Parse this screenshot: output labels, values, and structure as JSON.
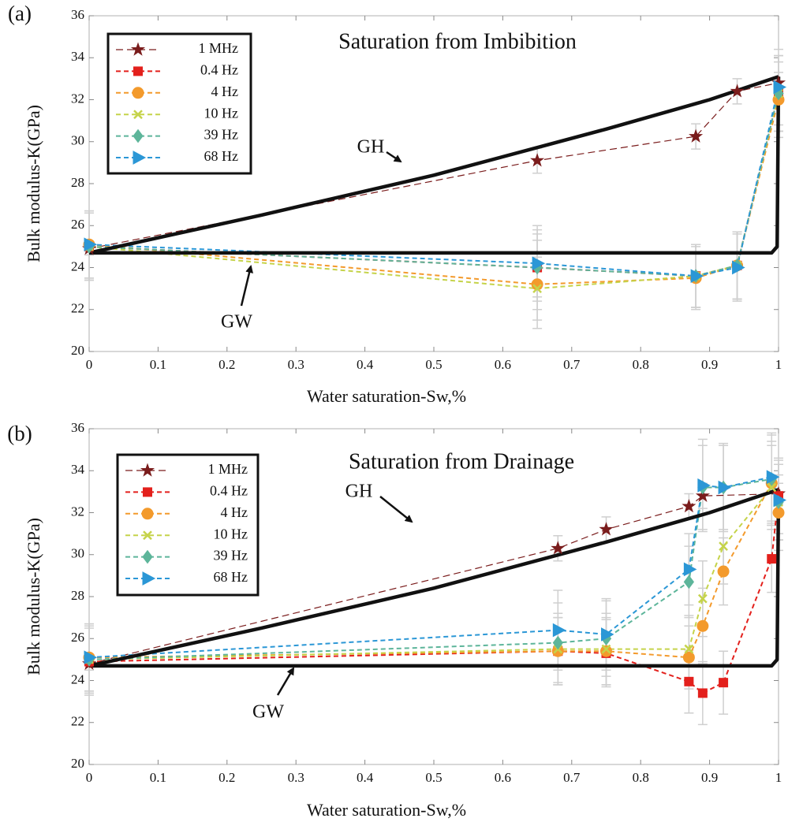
{
  "chart_data": [
    {
      "type": "line",
      "label": "(a)",
      "title": "Saturation from Imbibition",
      "xlabel": "Water saturation-Sw,%",
      "ylabel": "Bulk modulus-K(GPa)",
      "xlim": [
        0,
        1
      ],
      "ylim": [
        20,
        36
      ],
      "xticks": [
        0,
        0.1,
        0.2,
        0.3,
        0.4,
        0.5,
        0.6,
        0.7,
        0.8,
        0.9,
        1
      ],
      "yticks": [
        20,
        22,
        24,
        26,
        28,
        30,
        32,
        34,
        36
      ],
      "legend": "upper left",
      "series": [
        {
          "name": "1 MHz",
          "color": "#7a1c1c",
          "marker": "star",
          "x": [
            0,
            0.65,
            0.88,
            0.94,
            1
          ],
          "values": [
            24.9,
            29.1,
            30.25,
            32.4,
            32.8
          ],
          "errors": [
            0.3,
            0.6,
            0.6,
            0.6,
            0.5
          ]
        },
        {
          "name": "0.4 Hz",
          "color": "#e3201c",
          "marker": "square",
          "x": [
            0,
            0.65,
            0.88,
            0.94,
            1
          ],
          "values": [
            25.0,
            24.0,
            23.6,
            24.1,
            32.3
          ],
          "errors": [
            1.6,
            2.0,
            1.5,
            1.6,
            1.8
          ]
        },
        {
          "name": "4 Hz",
          "color": "#f39a2c",
          "marker": "circle",
          "x": [
            0,
            0.65,
            0.88,
            0.94,
            1
          ],
          "values": [
            25.1,
            23.2,
            23.5,
            24.1,
            32.0
          ],
          "errors": [
            1.6,
            2.1,
            1.5,
            1.6,
            1.8
          ]
        },
        {
          "name": "10 Hz",
          "color": "#c5d34a",
          "marker": "x",
          "x": [
            0,
            0.65,
            0.88,
            0.94,
            1
          ],
          "values": [
            25.0,
            23.0,
            23.6,
            24.1,
            32.3
          ],
          "errors": [
            1.6,
            1.5,
            1.5,
            1.6,
            1.8
          ]
        },
        {
          "name": "39 Hz",
          "color": "#5db59a",
          "marker": "diamond",
          "x": [
            0,
            0.65,
            0.88,
            0.94,
            1
          ],
          "values": [
            25.0,
            24.0,
            23.6,
            24.1,
            32.3
          ],
          "errors": [
            1.6,
            1.6,
            1.5,
            1.6,
            1.8
          ]
        },
        {
          "name": "68 Hz",
          "color": "#2b97d6",
          "marker": "triangle",
          "x": [
            0,
            0.65,
            0.88,
            0.94,
            1
          ],
          "values": [
            25.1,
            24.2,
            23.6,
            24.0,
            32.6
          ],
          "errors": [
            1.6,
            1.6,
            1.5,
            1.6,
            1.8
          ]
        }
      ],
      "bounds": [
        {
          "name": "GH",
          "x": [
            0,
            0.25,
            0.5,
            0.75,
            0.9,
            1
          ],
          "values": [
            24.7,
            26.5,
            28.4,
            30.6,
            32.0,
            33.1
          ]
        },
        {
          "name": "GW",
          "x": [
            0,
            0.99,
            0.998,
            1
          ],
          "values": [
            24.7,
            24.7,
            25.0,
            33.1
          ]
        }
      ]
    },
    {
      "type": "line",
      "label": "(b)",
      "title": "Saturation from Drainage",
      "xlabel": "Water saturation-Sw,%",
      "ylabel": "Bulk modulus-K(GPa)",
      "xlim": [
        0,
        1
      ],
      "ylim": [
        20,
        36
      ],
      "xticks": [
        0,
        0.1,
        0.2,
        0.3,
        0.4,
        0.5,
        0.6,
        0.7,
        0.8,
        0.9,
        1
      ],
      "yticks": [
        20,
        22,
        24,
        26,
        28,
        30,
        32,
        34,
        36
      ],
      "legend": "upper left",
      "series": [
        {
          "name": "1 MHz",
          "color": "#7a1c1c",
          "marker": "star",
          "x": [
            0,
            0.68,
            0.75,
            0.87,
            0.89,
            1
          ],
          "values": [
            24.8,
            30.3,
            31.2,
            32.3,
            32.8,
            32.9
          ],
          "errors": [
            0.3,
            0.6,
            0.6,
            0.6,
            0.6,
            0.5
          ]
        },
        {
          "name": "0.4 Hz",
          "color": "#e3201c",
          "marker": "square",
          "x": [
            0,
            0.68,
            0.75,
            0.87,
            0.89,
            0.92,
            0.99,
            1
          ],
          "values": [
            24.9,
            25.4,
            25.3,
            23.95,
            23.4,
            23.9,
            29.8,
            32.8
          ],
          "errors": [
            1.6,
            1.6,
            1.6,
            1.5,
            1.5,
            1.5,
            1.6,
            1.8
          ]
        },
        {
          "name": "4 Hz",
          "color": "#f39a2c",
          "marker": "circle",
          "x": [
            0,
            0.68,
            0.75,
            0.87,
            0.89,
            0.92,
            0.99,
            1
          ],
          "values": [
            25.1,
            25.4,
            25.4,
            25.1,
            26.6,
            29.2,
            33.4,
            32.0
          ],
          "errors": [
            1.6,
            1.6,
            1.6,
            1.5,
            1.8,
            1.6,
            2.0,
            1.8
          ]
        },
        {
          "name": "10 Hz",
          "color": "#c5d34a",
          "marker": "x",
          "x": [
            0,
            0.68,
            0.75,
            0.87,
            0.89,
            0.92,
            0.99,
            1
          ],
          "values": [
            25.0,
            25.5,
            25.5,
            25.5,
            27.9,
            30.4,
            33.2,
            32.5
          ],
          "errors": [
            1.6,
            1.7,
            1.7,
            1.6,
            1.8,
            1.8,
            2.0,
            1.8
          ]
        },
        {
          "name": "39 Hz",
          "color": "#5db59a",
          "marker": "diamond",
          "x": [
            0,
            0.68,
            0.75,
            0.87,
            0.89,
            0.92,
            0.99,
            1
          ],
          "values": [
            25.0,
            25.8,
            26.0,
            28.7,
            33.2,
            33.2,
            33.6,
            32.5
          ],
          "errors": [
            1.6,
            1.9,
            1.8,
            1.7,
            2.0,
            2.0,
            2.1,
            1.8
          ]
        },
        {
          "name": "68 Hz",
          "color": "#2b97d6",
          "marker": "triangle",
          "x": [
            0,
            0.68,
            0.75,
            0.87,
            0.89,
            0.92,
            0.99,
            1
          ],
          "values": [
            25.1,
            26.4,
            26.2,
            29.3,
            33.3,
            33.2,
            33.7,
            32.6
          ],
          "errors": [
            1.6,
            1.9,
            1.7,
            1.7,
            2.2,
            2.1,
            2.1,
            1.9
          ]
        }
      ],
      "bounds": [
        {
          "name": "GH",
          "x": [
            0,
            0.25,
            0.5,
            0.75,
            0.9,
            1
          ],
          "values": [
            24.7,
            26.5,
            28.4,
            30.6,
            32.0,
            33.1
          ]
        },
        {
          "name": "GW",
          "x": [
            0,
            0.99,
            0.998,
            1
          ],
          "values": [
            24.7,
            24.7,
            25.0,
            33.1
          ]
        }
      ]
    }
  ]
}
